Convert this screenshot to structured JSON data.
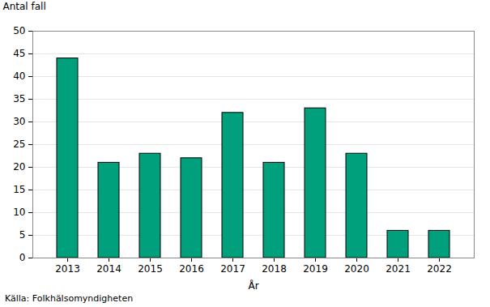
{
  "chart_data": {
    "type": "bar",
    "y_label": "Antal fall",
    "x_label": "År",
    "caption": "Källa: Folkhälsomyndigheten",
    "categories": [
      "2013",
      "2014",
      "2015",
      "2016",
      "2017",
      "2018",
      "2019",
      "2020",
      "2021",
      "2022"
    ],
    "values": [
      44,
      21,
      23,
      22,
      32,
      21,
      33,
      23,
      6,
      6
    ],
    "color": "#00a07d",
    "ylim": [
      0,
      50
    ],
    "yticks": [
      0,
      5,
      10,
      15,
      20,
      25,
      30,
      35,
      40,
      45,
      50
    ],
    "grid": true
  }
}
